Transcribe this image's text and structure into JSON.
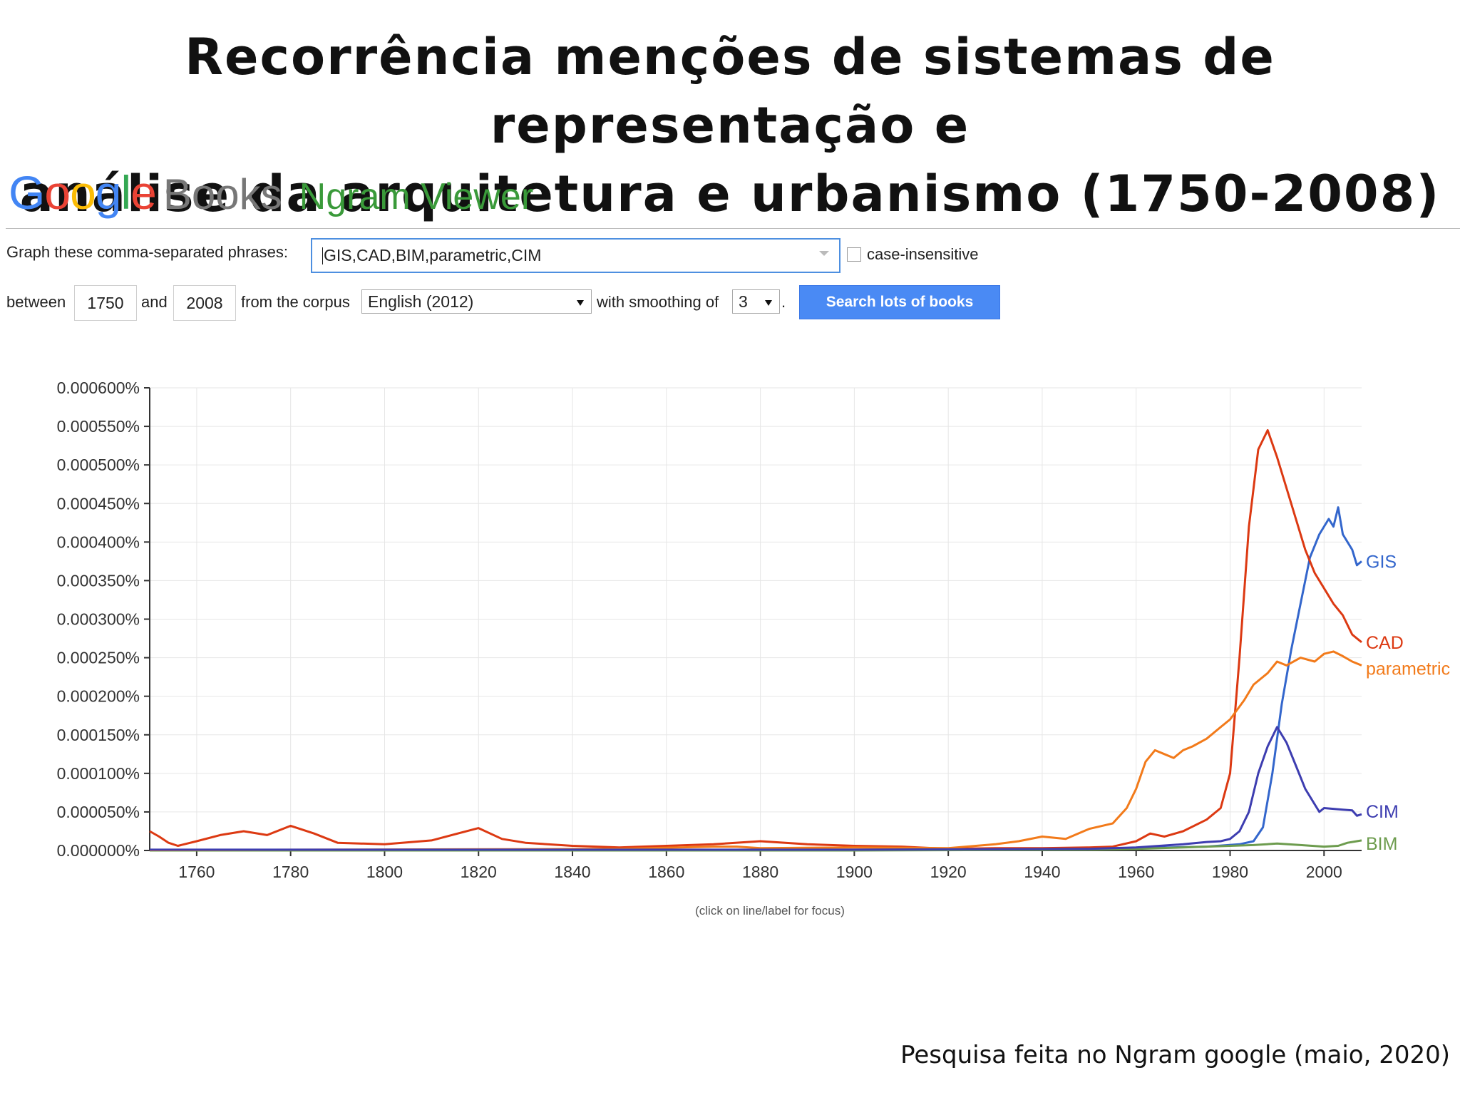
{
  "slide": {
    "title_line1": "Recorrência menções de sistemas de representação e",
    "title_line2": "análise da arquitetura e urbanismo (1750-2008)",
    "footer": "Pesquisa feita no Ngram google (maio, 2020)"
  },
  "logo": {
    "google": [
      {
        "ch": "G",
        "color": "#4285f4"
      },
      {
        "ch": "o",
        "color": "#ea4335"
      },
      {
        "ch": "o",
        "color": "#fbbc05"
      },
      {
        "ch": "g",
        "color": "#4285f4"
      },
      {
        "ch": "l",
        "color": "#34a853"
      },
      {
        "ch": "e",
        "color": "#ea4335"
      }
    ],
    "books": "Books",
    "ngram": "Ngram Viewer"
  },
  "form": {
    "phrases_label": "Graph these comma-separated phrases:",
    "phrases_value": "GIS,CAD,BIM,parametric,CIM",
    "case_label": "case-insensitive",
    "between_label": "between",
    "start_year": "1750",
    "and_label": "and",
    "end_year": "2008",
    "corpus_label": "from the corpus",
    "corpus_value": "English (2012)",
    "smoothing_label": "with smoothing of",
    "smoothing_value": "3",
    "period": ".",
    "search_button": "Search lots of books"
  },
  "chart_data": {
    "type": "line",
    "xlim": [
      1750,
      2008
    ],
    "ylim": [
      0,
      0.0006
    ],
    "x_ticks": [
      1760,
      1780,
      1800,
      1820,
      1840,
      1860,
      1880,
      1900,
      1920,
      1940,
      1960,
      1980,
      2000
    ],
    "y_ticks": [
      0,
      5e-05,
      0.0001,
      0.00015,
      0.0002,
      0.00025,
      0.0003,
      0.00035,
      0.0004,
      0.00045,
      0.0005,
      0.00055,
      0.0006
    ],
    "y_tick_labels": [
      "0.000000%",
      "0.000050%",
      "0.000100%",
      "0.000150%",
      "0.000200%",
      "0.000250%",
      "0.000300%",
      "0.000350%",
      "0.000400%",
      "0.000450%",
      "0.000500%",
      "0.000550%",
      "0.000600%"
    ],
    "grid": true,
    "caption": "(click on line/label for focus)",
    "series": [
      {
        "name": "GIS",
        "color": "#3366cc",
        "x": [
          1750,
          1800,
          1900,
          1960,
          1975,
          1982,
          1985,
          1987,
          1989,
          1991,
          1993,
          1995,
          1997,
          1999,
          2001,
          2002,
          2003,
          2004,
          2006,
          2007,
          2008
        ],
        "y": [
          0,
          0,
          1e-06,
          3e-06,
          5e-06,
          8e-06,
          1.2e-05,
          3e-05,
          0.0001,
          0.00019,
          0.00026,
          0.00032,
          0.00038,
          0.00041,
          0.00043,
          0.00042,
          0.000445,
          0.00041,
          0.00039,
          0.00037,
          0.000375
        ]
      },
      {
        "name": "CAD",
        "color": "#dc3912",
        "x": [
          1750,
          1752,
          1754,
          1756,
          1760,
          1765,
          1770,
          1775,
          1780,
          1785,
          1790,
          1800,
          1810,
          1820,
          1825,
          1830,
          1840,
          1850,
          1860,
          1870,
          1880,
          1890,
          1900,
          1910,
          1920,
          1930,
          1940,
          1950,
          1955,
          1960,
          1963,
          1966,
          1970,
          1975,
          1978,
          1980,
          1982,
          1984,
          1986,
          1988,
          1990,
          1992,
          1994,
          1996,
          1998,
          2000,
          2002,
          2004,
          2006,
          2008
        ],
        "y": [
          2.5e-05,
          1.8e-05,
          1e-05,
          6e-06,
          1.2e-05,
          2e-05,
          2.5e-05,
          2e-05,
          3.2e-05,
          2.2e-05,
          1e-05,
          8e-06,
          1.3e-05,
          2.9e-05,
          1.5e-05,
          1e-05,
          6e-06,
          4e-06,
          6e-06,
          8e-06,
          1.2e-05,
          8e-06,
          6e-06,
          5e-06,
          2e-06,
          3e-06,
          3e-06,
          4e-06,
          5e-06,
          1.2e-05,
          2.2e-05,
          1.8e-05,
          2.5e-05,
          4e-05,
          5.5e-05,
          0.0001,
          0.00025,
          0.00042,
          0.00052,
          0.000545,
          0.00051,
          0.00047,
          0.00043,
          0.00039,
          0.00036,
          0.00034,
          0.00032,
          0.000305,
          0.00028,
          0.00027
        ]
      },
      {
        "name": "BIM",
        "color": "#6d9c4e",
        "x": [
          1750,
          1800,
          1900,
          1950,
          1960,
          1970,
          1975,
          1980,
          1985,
          1990,
          1995,
          2000,
          2003,
          2005,
          2008
        ],
        "y": [
          0,
          0,
          0,
          1e-06,
          2e-06,
          4e-06,
          5e-06,
          6e-06,
          7e-06,
          9e-06,
          7e-06,
          5e-06,
          6e-06,
          1e-05,
          1.3e-05
        ]
      },
      {
        "name": "parametric",
        "color": "#f27a1a",
        "x": [
          1750,
          1850,
          1870,
          1875,
          1880,
          1900,
          1920,
          1930,
          1935,
          1940,
          1945,
          1950,
          1955,
          1958,
          1960,
          1962,
          1964,
          1966,
          1968,
          1970,
          1972,
          1975,
          1978,
          1980,
          1983,
          1985,
          1988,
          1990,
          1992,
          1995,
          1998,
          2000,
          2002,
          2004,
          2006,
          2008
        ],
        "y": [
          5e-07,
          2e-06,
          5e-06,
          5e-06,
          3e-06,
          4e-06,
          3e-06,
          8e-06,
          1.2e-05,
          1.8e-05,
          1.5e-05,
          2.8e-05,
          3.5e-05,
          5.5e-05,
          8e-05,
          0.000115,
          0.00013,
          0.000125,
          0.00012,
          0.00013,
          0.000135,
          0.000145,
          0.00016,
          0.00017,
          0.000195,
          0.000215,
          0.00023,
          0.000245,
          0.00024,
          0.00025,
          0.000245,
          0.000255,
          0.000258,
          0.000252,
          0.000245,
          0.00024
        ]
      },
      {
        "name": "CIM",
        "color": "#3d3db0",
        "x": [
          1750,
          1800,
          1900,
          1950,
          1960,
          1970,
          1975,
          1978,
          1980,
          1982,
          1984,
          1986,
          1988,
          1990,
          1992,
          1994,
          1996,
          1998,
          1999,
          2000,
          2002,
          2004,
          2006,
          2007,
          2008
        ],
        "y": [
          1e-06,
          1e-06,
          1e-06,
          2e-06,
          4e-06,
          8e-06,
          1.1e-05,
          1.2e-05,
          1.5e-05,
          2.5e-05,
          5e-05,
          0.0001,
          0.000135,
          0.00016,
          0.00014,
          0.00011,
          8e-05,
          6e-05,
          5e-05,
          5.5e-05,
          5.4e-05,
          5.3e-05,
          5.2e-05,
          4.5e-05,
          4.7e-05
        ]
      }
    ]
  }
}
